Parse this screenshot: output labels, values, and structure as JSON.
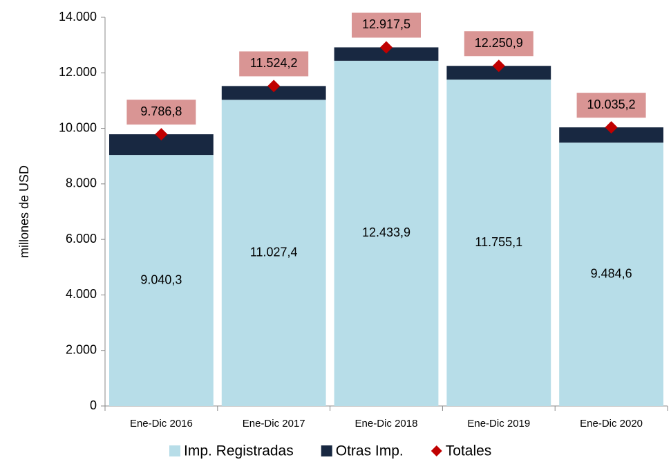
{
  "chart_data": {
    "type": "bar",
    "stacked": true,
    "y_label": "millones de  USD",
    "categories": [
      "Ene-Dic 2016",
      "Ene-Dic 2017",
      "Ene-Dic 2018",
      "Ene-Dic 2019",
      "Ene-Dic 2020"
    ],
    "series": [
      {
        "name": "Imp. Registradas",
        "color": "#b7dde8",
        "values": [
          9040.3,
          11027.4,
          12433.9,
          11755.1,
          9484.6
        ],
        "value_labels": [
          "9.040,3",
          "11.027,4",
          "12.433,9",
          "11.755,1",
          "9.484,6"
        ]
      },
      {
        "name": "Otras Imp.",
        "color": "#182841",
        "values": [
          746.5,
          496.8,
          483.6,
          495.8,
          550.6
        ]
      },
      {
        "name": "Totales",
        "color": "#c00000",
        "type": "marker",
        "label_color": "#d99594",
        "values": [
          9786.8,
          11524.2,
          12917.5,
          12250.9,
          10035.2
        ],
        "value_labels": [
          "9.786,8",
          "11.524,2",
          "12.917,5",
          "12.250,9",
          "10.035,2"
        ]
      }
    ],
    "ylim": [
      0,
      14000
    ],
    "yticks": [
      0,
      {
        "value": 2000,
        "label": "2.000"
      },
      {
        "value": 4000,
        "label": "4.000"
      },
      {
        "value": 6000,
        "label": "6.000"
      },
      {
        "value": 8000,
        "label": "8.000"
      },
      {
        "value": 10000,
        "label": "10.000"
      },
      {
        "value": 12000,
        "label": "12.000"
      },
      {
        "value": 14000,
        "label": "14.000"
      }
    ],
    "legend": "bottom"
  }
}
